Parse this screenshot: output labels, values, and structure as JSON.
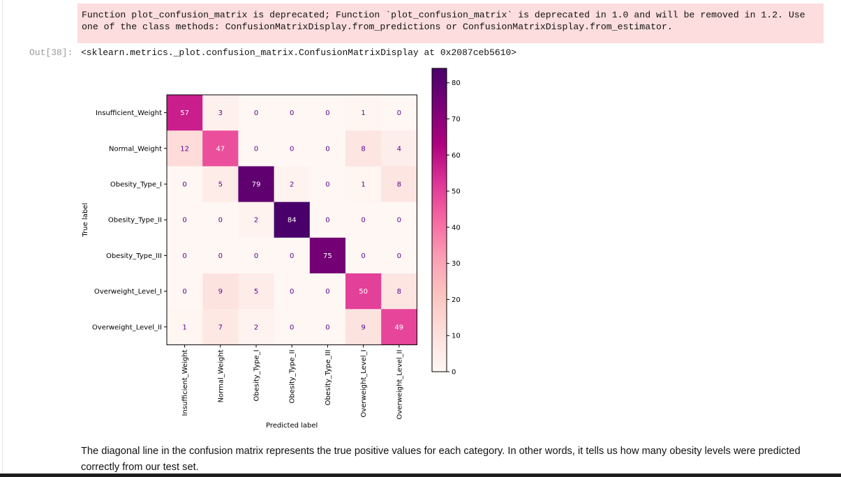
{
  "notebook": {
    "warning_text": "Function plot_confusion_matrix is deprecated; Function `plot_confusion_matrix` is deprecated in 1.0 and will be removed in 1.2. Use one of the class methods: ConfusionMatrixDisplay.from_predictions or ConfusionMatrixDisplay.from_estimator.",
    "output_prompt": "Out[38]:",
    "output_repr": "<sklearn.metrics._plot.confusion_matrix.ConfusionMatrixDisplay at 0x2087ceb5610>",
    "markdown_text": "The diagonal line in the confusion matrix represents the true positive values for each category. In other words, it tells us how many obesity levels were predicted correctly from our test set."
  },
  "chart_data": {
    "type": "heatmap",
    "title": "",
    "xlabel": "Predicted label",
    "ylabel": "True label",
    "categories": [
      "Insufficient_Weight",
      "Normal_Weight",
      "Obesity_Type_I",
      "Obesity_Type_II",
      "Obesity_Type_III",
      "Overweight_Level_I",
      "Overweight_Level_II"
    ],
    "matrix": [
      [
        57,
        3,
        0,
        0,
        0,
        1,
        0
      ],
      [
        12,
        47,
        0,
        0,
        0,
        8,
        4
      ],
      [
        0,
        5,
        79,
        2,
        0,
        1,
        8
      ],
      [
        0,
        0,
        2,
        84,
        0,
        0,
        0
      ],
      [
        0,
        0,
        0,
        0,
        75,
        0,
        0
      ],
      [
        0,
        9,
        5,
        0,
        0,
        50,
        8
      ],
      [
        1,
        7,
        2,
        0,
        0,
        9,
        49
      ]
    ],
    "colormap": "RdPu",
    "colorbar": {
      "min": 0,
      "max": 84,
      "ticks": [
        0,
        10,
        20,
        30,
        40,
        50,
        60,
        70,
        80
      ]
    },
    "text_colors": {
      "light_cells": "#5b008f",
      "dark_cells": "#ffffff"
    }
  }
}
